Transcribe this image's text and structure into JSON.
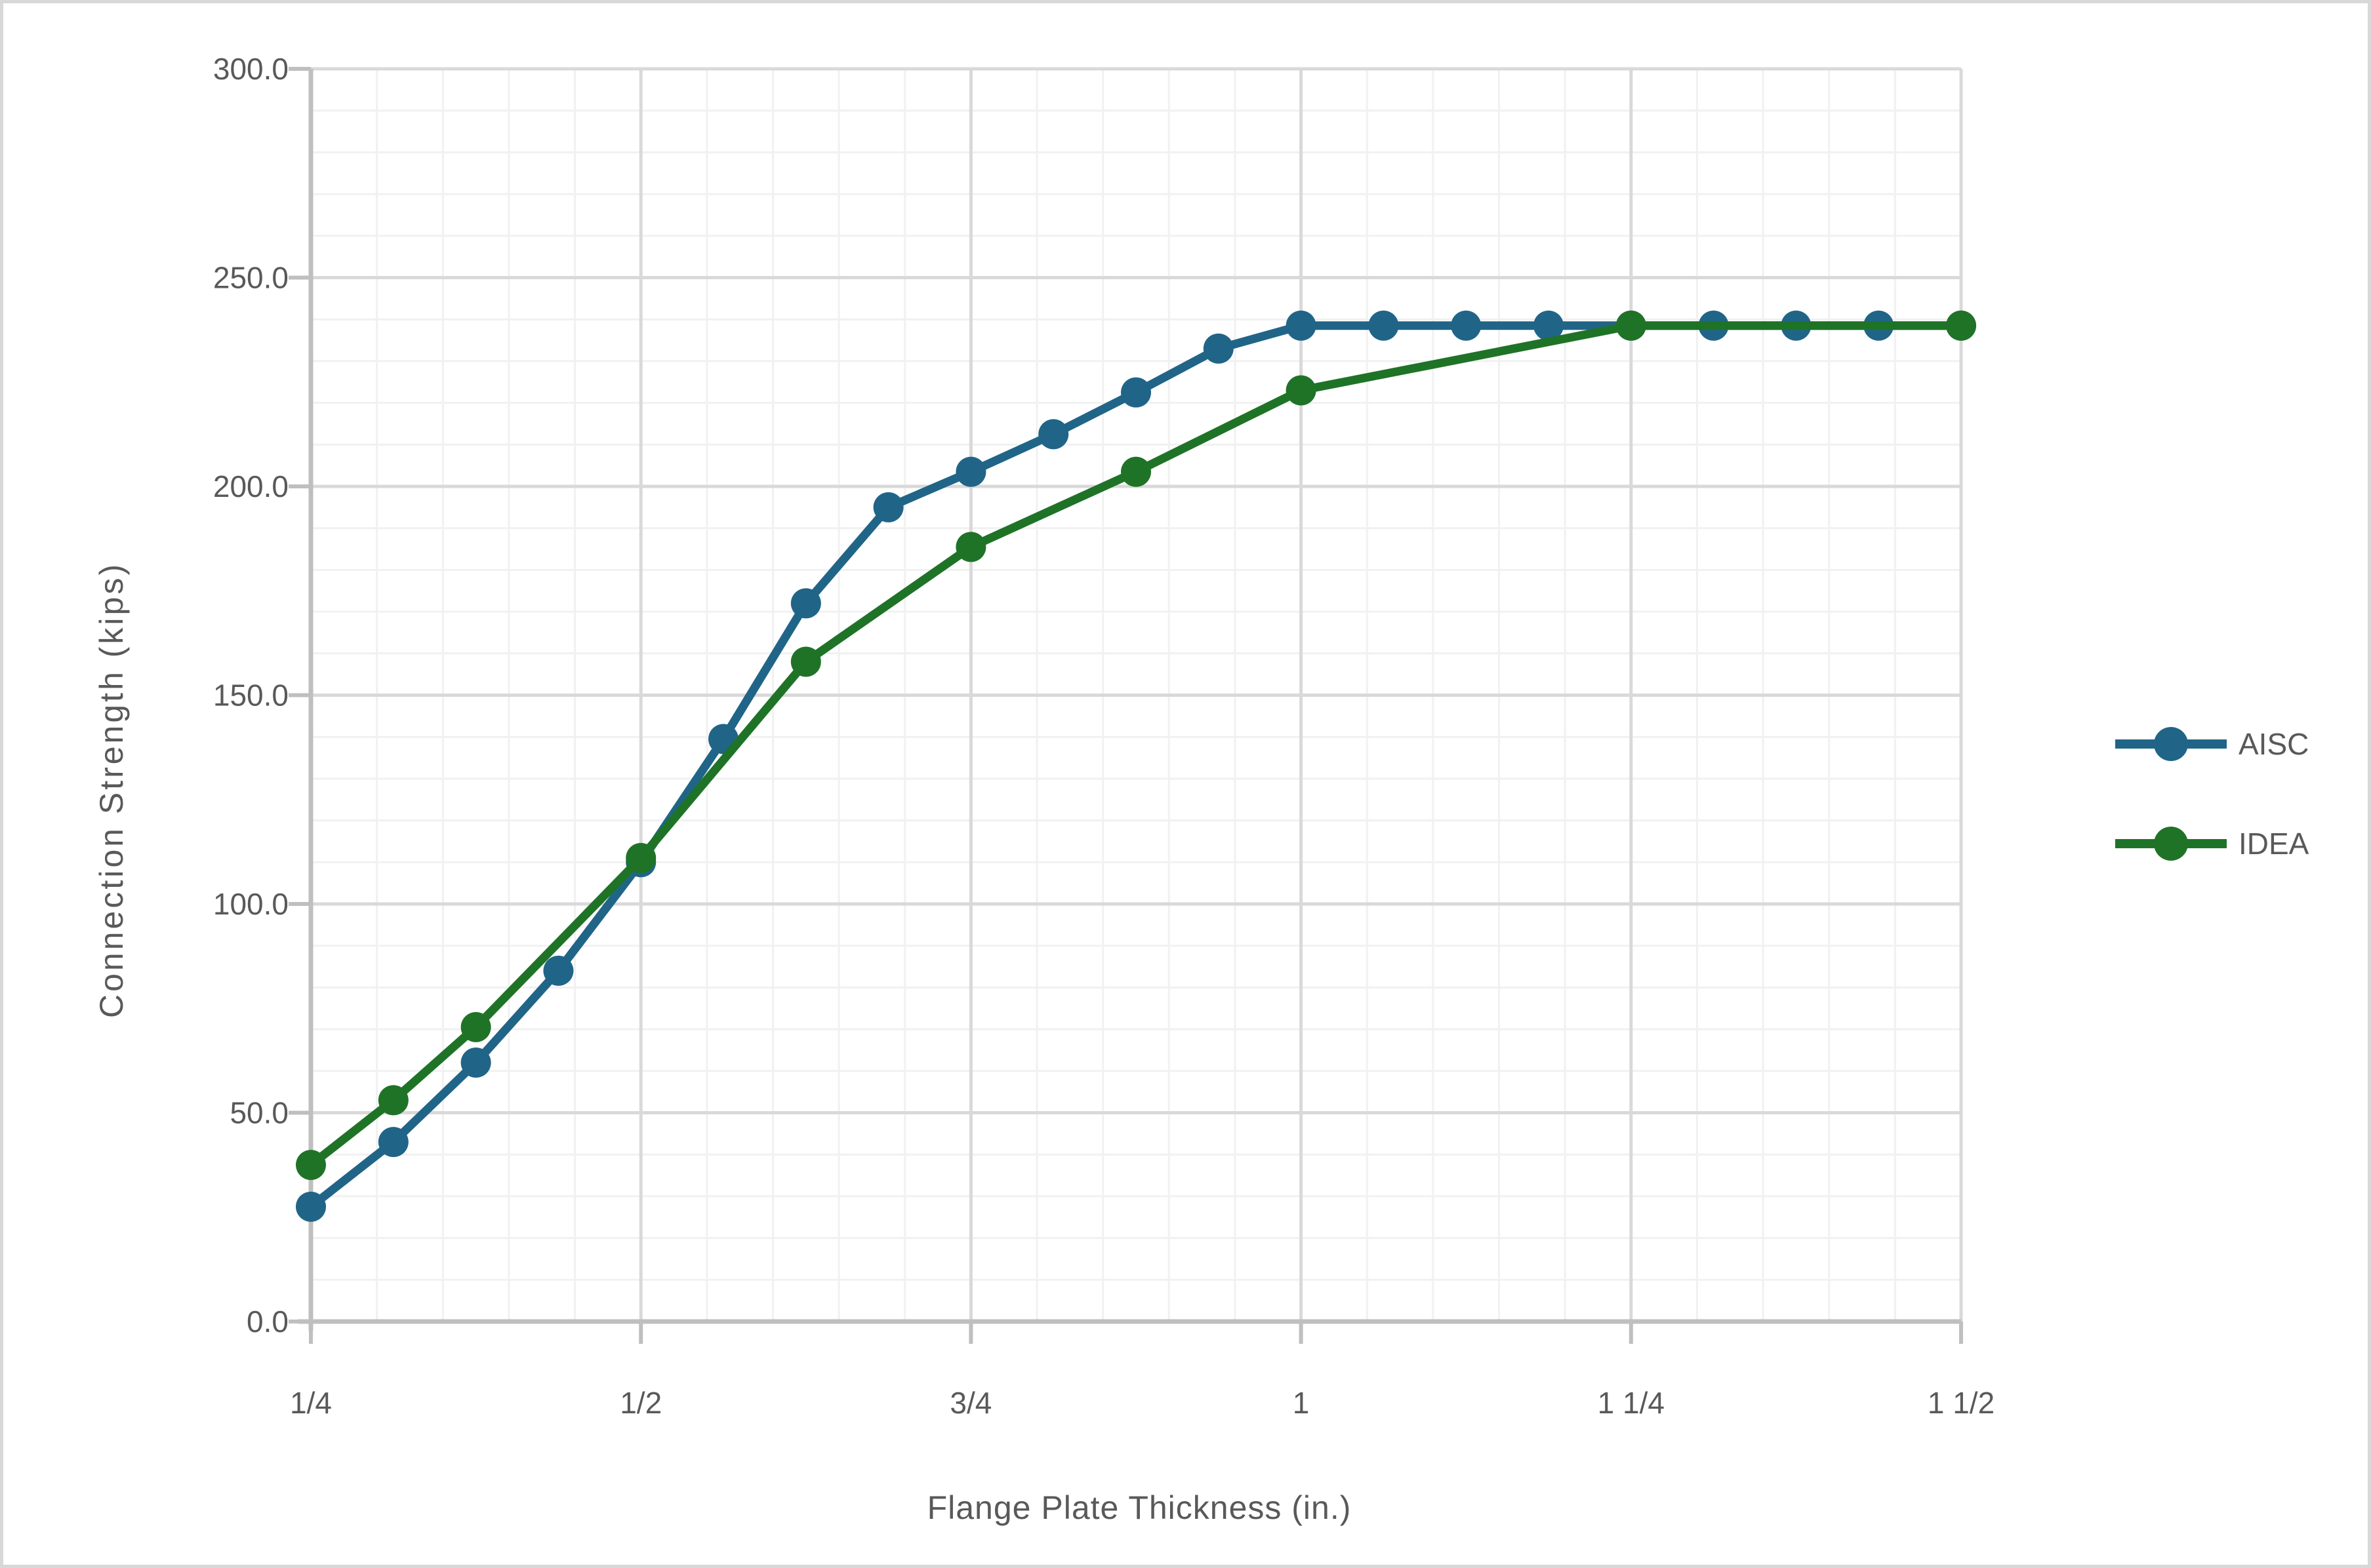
{
  "chart_data": {
    "type": "line",
    "title": "",
    "xlabel": "Flange Plate Thickness (in.)",
    "ylabel": "Connection Strength (kips)",
    "xlim": [
      0.25,
      1.5
    ],
    "ylim": [
      0,
      300
    ],
    "x_major_ticks": [
      0.25,
      0.5,
      0.75,
      1.0,
      1.25,
      1.5
    ],
    "x_tick_labels": [
      "1/4",
      "1/2",
      "3/4",
      "1",
      "1 1/4",
      "1 1/2"
    ],
    "x_minor_step": 0.05,
    "y_major_ticks": [
      0,
      50,
      100,
      150,
      200,
      250,
      300
    ],
    "y_tick_labels": [
      "0.0",
      "50.0",
      "100.0",
      "150.0",
      "200.0",
      "250.0",
      "300.0"
    ],
    "y_minor_step": 10,
    "grid": true,
    "legend_position": "right",
    "series": [
      {
        "name": "AISC",
        "color": "#206587",
        "x": [
          0.25,
          0.3125,
          0.375,
          0.4375,
          0.5,
          0.5625,
          0.625,
          0.6875,
          0.75,
          0.8125,
          0.875,
          0.9375,
          1.0,
          1.0625,
          1.125,
          1.1875,
          1.25,
          1.3125,
          1.375,
          1.4375,
          1.5
        ],
        "y": [
          27.5,
          43.0,
          62.0,
          84.0,
          110.0,
          139.5,
          172.0,
          195.0,
          203.5,
          212.5,
          222.5,
          233.0,
          238.5,
          238.5,
          238.5,
          238.5,
          238.5,
          238.5,
          238.5,
          238.5,
          238.5
        ]
      },
      {
        "name": "IDEA",
        "color": "#1F7327",
        "x": [
          0.25,
          0.3125,
          0.375,
          0.5,
          0.625,
          0.75,
          0.875,
          1.0,
          1.25,
          1.5
        ],
        "y": [
          37.5,
          53.0,
          70.5,
          111.0,
          158.0,
          185.5,
          203.5,
          223.0,
          238.5,
          238.5
        ]
      }
    ]
  },
  "colors": {
    "text": "#595959",
    "axis_line": "#bfbfbf",
    "major_grid": "#d9d9d9",
    "minor_grid": "#f1f1f1",
    "background": "#ffffff",
    "border": "#d8d8d8"
  }
}
